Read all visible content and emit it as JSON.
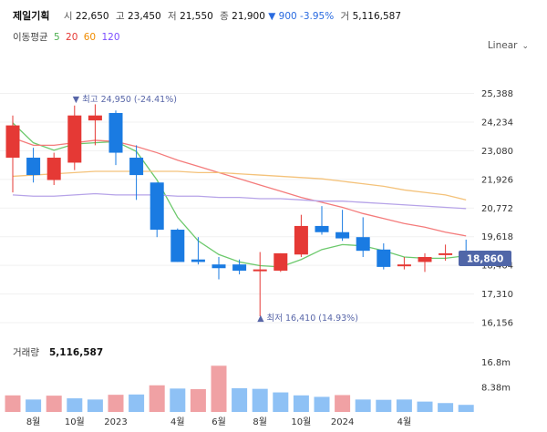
{
  "header": {
    "name": "제일기획",
    "open_label": "시",
    "open": "22,650",
    "high_label": "고",
    "high": "23,450",
    "low_label": "저",
    "low": "21,550",
    "close_label": "종",
    "close": "21,900",
    "change": "▼ 900 -3.95%",
    "volume_label": "거",
    "volume": "5,116,587"
  },
  "moving_average": {
    "label": "이동평균",
    "periods": [
      {
        "label": "5",
        "color": "#4caf50"
      },
      {
        "label": "20",
        "color": "#e53935"
      },
      {
        "label": "60",
        "color": "#f08c00"
      },
      {
        "label": "120",
        "color": "#7c4dff"
      }
    ]
  },
  "scale_label": "Linear",
  "price_badge": "18,860",
  "volume_panel_label": "거래량",
  "volume_panel_value": "5,116,587",
  "colors": {
    "up": "#e53935",
    "down": "#1a7be2",
    "vol_up": "#f0a1a4",
    "vol_down": "#8ec1f5",
    "badge": "#5066a8"
  },
  "chart_data": {
    "type": "candlestick",
    "title": "제일기획",
    "y_ticks": [
      16156,
      17310,
      18464,
      19618,
      20772,
      21926,
      23080,
      24234,
      25388
    ],
    "y_tick_labels": [
      "16,156",
      "17,310",
      "18,464",
      "19,618",
      "20,772",
      "21,926",
      "23,080",
      "24,234",
      "25,388"
    ],
    "ylim": [
      15900,
      25700
    ],
    "x_tick_labels": [
      {
        "label": "8월",
        "index": 1
      },
      {
        "label": "10월",
        "index": 3
      },
      {
        "label": "2023",
        "index": 5
      },
      {
        "label": "4월",
        "index": 8
      },
      {
        "label": "6월",
        "index": 10
      },
      {
        "label": "8월",
        "index": 12
      },
      {
        "label": "10월",
        "index": 14
      },
      {
        "label": "2024",
        "index": 16
      },
      {
        "label": "4월",
        "index": 19
      }
    ],
    "candles": [
      {
        "open": 22800,
        "high": 24500,
        "low": 21400,
        "close": 24100
      },
      {
        "open": 22800,
        "high": 23200,
        "low": 21800,
        "close": 22100
      },
      {
        "open": 21900,
        "high": 23000,
        "low": 21700,
        "close": 22800
      },
      {
        "open": 22600,
        "high": 24900,
        "low": 22300,
        "close": 24500
      },
      {
        "open": 24300,
        "high": 24950,
        "low": 23300,
        "close": 24500
      },
      {
        "open": 24600,
        "high": 24700,
        "low": 22500,
        "close": 23000
      },
      {
        "open": 22800,
        "high": 23300,
        "low": 21100,
        "close": 22100
      },
      {
        "open": 21800,
        "high": 21800,
        "low": 19600,
        "close": 19900
      },
      {
        "open": 19900,
        "high": 19950,
        "low": 18600,
        "close": 18600
      },
      {
        "open": 18700,
        "high": 19600,
        "low": 18500,
        "close": 18600
      },
      {
        "open": 18500,
        "high": 18800,
        "low": 17900,
        "close": 18350
      },
      {
        "open": 18500,
        "high": 18700,
        "low": 18100,
        "close": 18250
      },
      {
        "open": 18300,
        "high": 19000,
        "low": 16410,
        "close": 18300
      },
      {
        "open": 18250,
        "high": 18950,
        "low": 18200,
        "close": 18950
      },
      {
        "open": 18900,
        "high": 20500,
        "low": 18800,
        "close": 20050
      },
      {
        "open": 20050,
        "high": 20850,
        "low": 19700,
        "close": 19800
      },
      {
        "open": 19800,
        "high": 20700,
        "low": 19450,
        "close": 19550
      },
      {
        "open": 19600,
        "high": 20400,
        "low": 18800,
        "close": 19050
      },
      {
        "open": 19100,
        "high": 19350,
        "low": 18300,
        "close": 18400
      },
      {
        "open": 18450,
        "high": 18800,
        "low": 18300,
        "close": 18500
      },
      {
        "open": 18600,
        "high": 18950,
        "low": 18200,
        "close": 18800
      },
      {
        "open": 18900,
        "high": 19300,
        "low": 18650,
        "close": 18950
      },
      {
        "open": 18950,
        "high": 19500,
        "low": 18700,
        "close": 18860
      }
    ],
    "series": [
      {
        "name": "MA5",
        "color": "#6cc96c",
        "values": [
          24200,
          23400,
          23100,
          23350,
          23400,
          23450,
          23050,
          21900,
          20400,
          19450,
          18900,
          18600,
          18450,
          18400,
          18700,
          19100,
          19300,
          19250,
          19050,
          18800,
          18750,
          18750,
          18850
        ]
      },
      {
        "name": "MA20",
        "color": "#f47b7b",
        "values": [
          23600,
          23300,
          23300,
          23400,
          23500,
          23450,
          23250,
          23000,
          22700,
          22450,
          22200,
          21950,
          21700,
          21450,
          21200,
          21000,
          20800,
          20550,
          20350,
          20150,
          20000,
          19800,
          19650
        ]
      },
      {
        "name": "MA60",
        "color": "#f4c27a",
        "values": [
          22050,
          22100,
          22150,
          22200,
          22250,
          22250,
          22250,
          22250,
          22250,
          22200,
          22200,
          22150,
          22100,
          22050,
          22000,
          21950,
          21850,
          21750,
          21650,
          21500,
          21400,
          21300,
          21100
        ]
      },
      {
        "name": "MA120",
        "color": "#b6a3e8",
        "values": [
          21300,
          21250,
          21250,
          21300,
          21350,
          21300,
          21300,
          21300,
          21250,
          21250,
          21200,
          21200,
          21150,
          21150,
          21100,
          21050,
          21050,
          21000,
          20950,
          20900,
          20850,
          20800,
          20750
        ]
      }
    ],
    "max_annotation": {
      "index": 3,
      "label": "최고 24,950 (-24.41%)"
    },
    "min_annotation": {
      "index": 12,
      "label": "최저 16,410 (14.93%)"
    },
    "volume": {
      "tick_labels": [
        "16.8m",
        "8.38m"
      ],
      "ticks": [
        16800000,
        8380000
      ],
      "ymax": 24000000,
      "bars": [
        {
          "value": 5600000,
          "up": true
        },
        {
          "value": 4200000,
          "up": false
        },
        {
          "value": 5500000,
          "up": true
        },
        {
          "value": 4600000,
          "up": false
        },
        {
          "value": 4200000,
          "up": false
        },
        {
          "value": 5800000,
          "up": true
        },
        {
          "value": 5900000,
          "up": false
        },
        {
          "value": 9000000,
          "up": true
        },
        {
          "value": 7900000,
          "up": false
        },
        {
          "value": 7700000,
          "up": true
        },
        {
          "value": 15600000,
          "up": true
        },
        {
          "value": 8000000,
          "up": false
        },
        {
          "value": 7800000,
          "up": false
        },
        {
          "value": 6600000,
          "up": false
        },
        {
          "value": 5600000,
          "up": false
        },
        {
          "value": 5100000,
          "up": false
        },
        {
          "value": 5700000,
          "up": true
        },
        {
          "value": 4200000,
          "up": false
        },
        {
          "value": 4100000,
          "up": false
        },
        {
          "value": 4200000,
          "up": false
        },
        {
          "value": 3500000,
          "up": false
        },
        {
          "value": 3000000,
          "up": false
        },
        {
          "value": 2400000,
          "up": false
        }
      ]
    }
  }
}
